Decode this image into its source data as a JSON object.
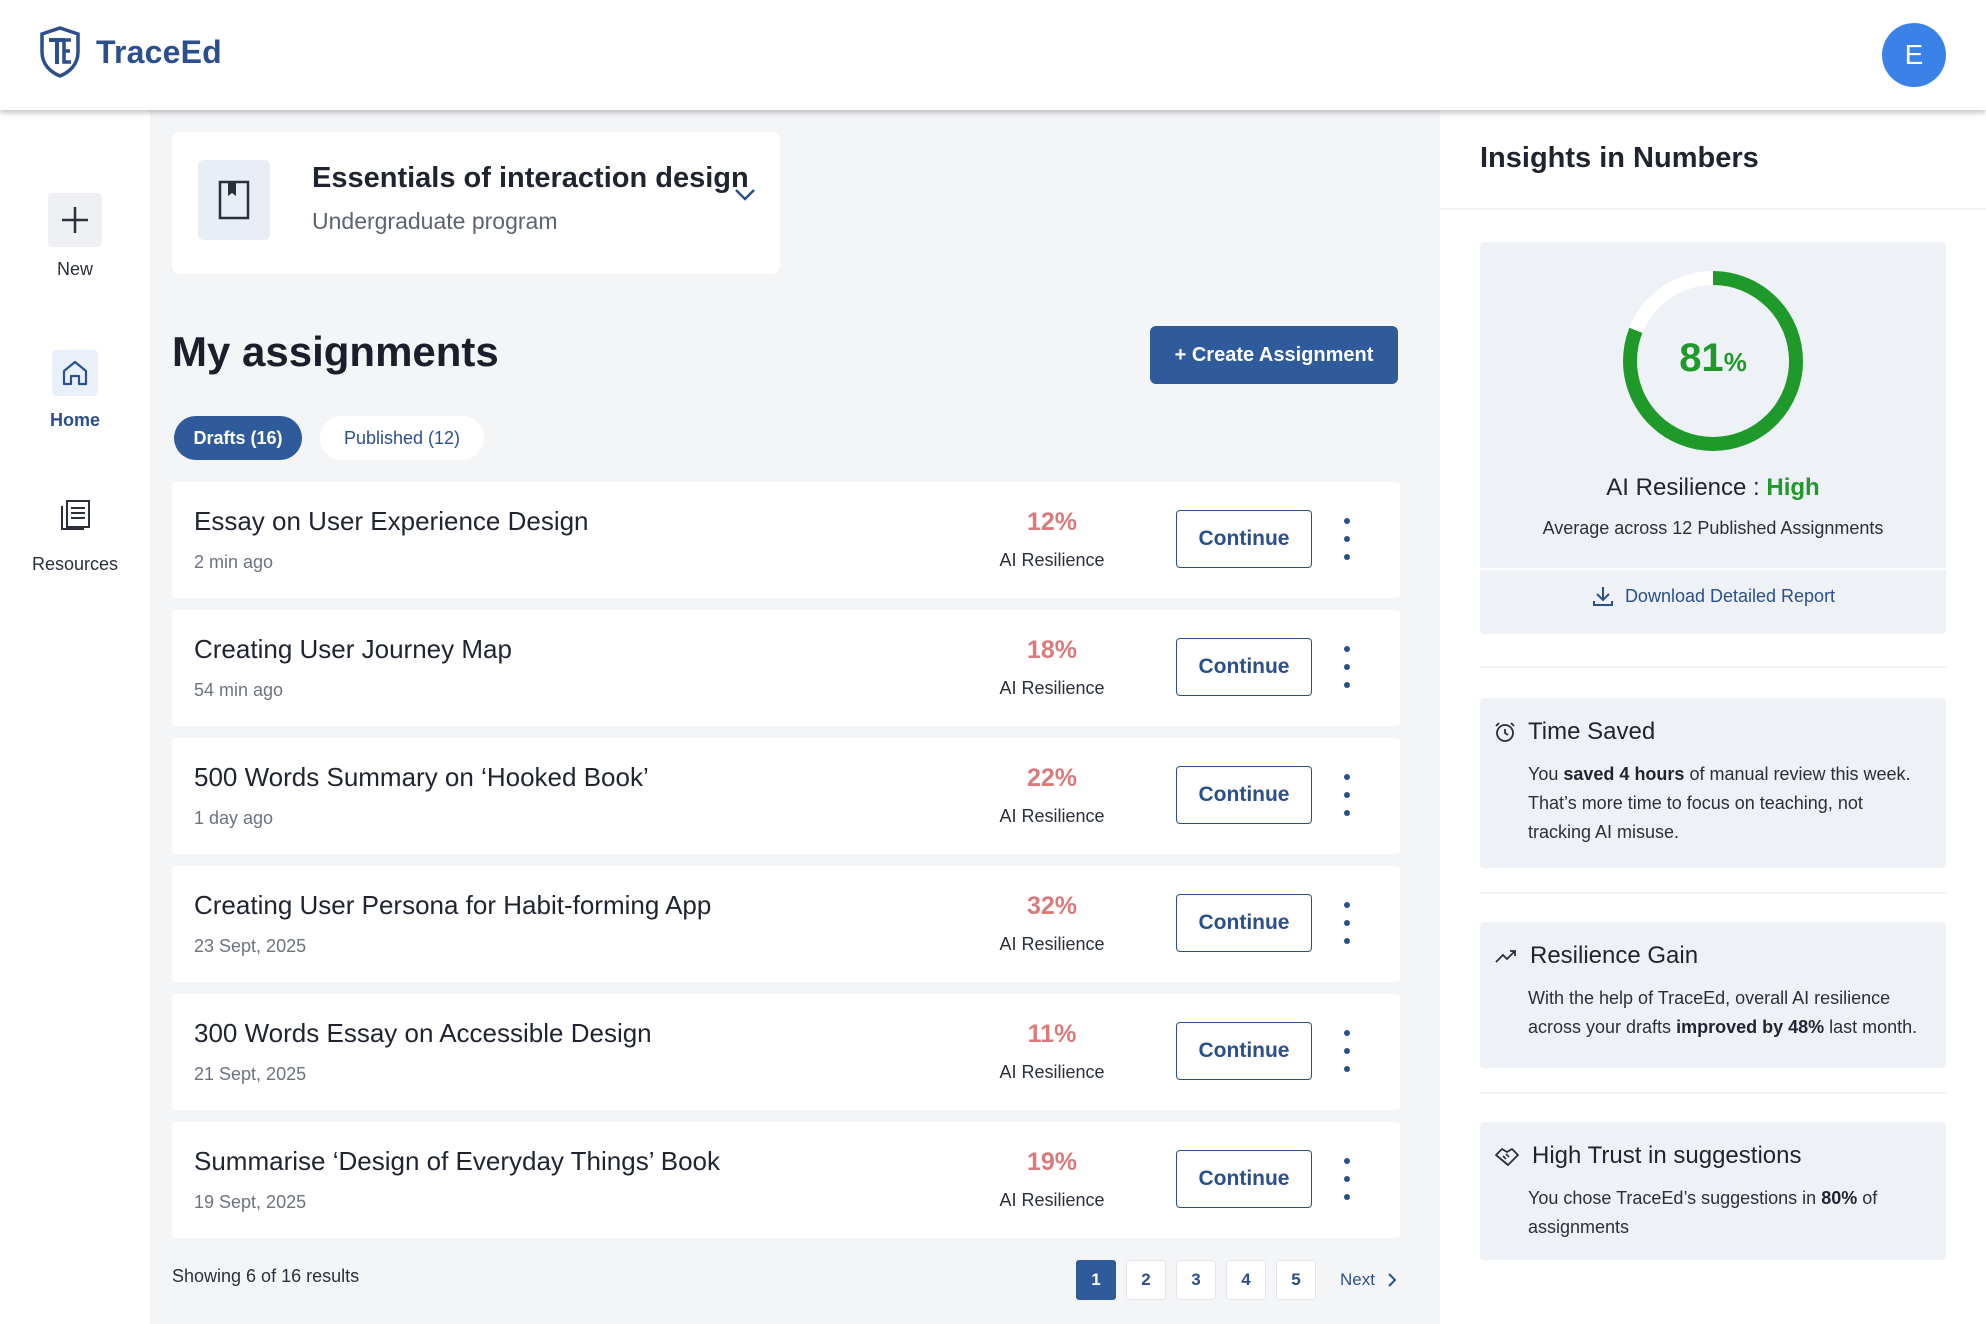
{
  "app": {
    "name": "TraceEd",
    "user_initial": "E"
  },
  "rail": {
    "items": [
      {
        "label": "New",
        "icon": "plus-icon"
      },
      {
        "label": "Home",
        "icon": "home-icon"
      },
      {
        "label": "Resources",
        "icon": "resources-icon"
      }
    ]
  },
  "course": {
    "title": "Essentials of interaction design",
    "subtitle": "Undergraduate program",
    "icon": "bookmark-icon"
  },
  "assignments": {
    "title": "My assignments",
    "create_label": "+ Create Assignment",
    "tabs": [
      {
        "label": "Drafts (16)",
        "active": true
      },
      {
        "label": "Published (12)",
        "active": false
      }
    ],
    "rows": [
      {
        "title": "Essay on User Experience Design",
        "meta": "2 min ago",
        "pct": "12%",
        "pct_label": "AI Resilience",
        "action": "Continue"
      },
      {
        "title": "Creating User Journey Map",
        "meta": "54 min ago",
        "pct": "18%",
        "pct_label": "AI Resilience",
        "action": "Continue"
      },
      {
        "title": "500 Words Summary on ‘Hooked Book’",
        "meta": "1 day ago",
        "pct": "22%",
        "pct_label": "AI Resilience",
        "action": "Continue"
      },
      {
        "title": "Creating User Persona for Habit-forming App",
        "meta": "23 Sept, 2025",
        "pct": "32%",
        "pct_label": "AI Resilience",
        "action": "Continue"
      },
      {
        "title": "300 Words Essay on Accessible Design",
        "meta": "21 Sept, 2025",
        "pct": "11%",
        "pct_label": "AI Resilience",
        "action": "Continue"
      },
      {
        "title": "Summarise ‘Design of Everyday Things’ Book",
        "meta": "19 Sept, 2025",
        "pct": "19%",
        "pct_label": "AI Resilience",
        "action": "Continue"
      }
    ],
    "showing": "Showing 6 of 16 results",
    "pages": [
      "1",
      "2",
      "3",
      "4",
      "5"
    ],
    "current_page": "1",
    "next_label": "Next"
  },
  "insights": {
    "title": "Insights in Numbers",
    "resilience": {
      "value": 81,
      "value_text": "81",
      "unit": "%",
      "label": "AI Resilience : ",
      "level": "High",
      "subtitle": "Average across 12 Published Assignments",
      "download_label": "Download Detailed Report",
      "ring_color": "#1f9a2a"
    },
    "cards": [
      {
        "icon": "alarm-clock-icon",
        "title": "Time Saved",
        "body_pre": "You ",
        "body_bold": "saved 4 hours",
        "body_post": " of manual review this week. That’s more time to focus on teaching, not tracking AI misuse."
      },
      {
        "icon": "trending-up-icon",
        "title": "Resilience Gain",
        "body_pre": "With the help of TraceEd, overall AI resilience across your drafts ",
        "body_bold": "improved by 48%",
        "body_post": " last month."
      },
      {
        "icon": "handshake-icon",
        "title": "High Trust in suggestions",
        "body_pre": "You chose TraceEd’s suggestions in ",
        "body_bold": "80%",
        "body_post": " of assignments"
      }
    ]
  },
  "colors": {
    "primary": "#2f5a9c",
    "pct_red": "#d97b7b",
    "success": "#1f9a2a",
    "avatar": "#3a82e8"
  }
}
